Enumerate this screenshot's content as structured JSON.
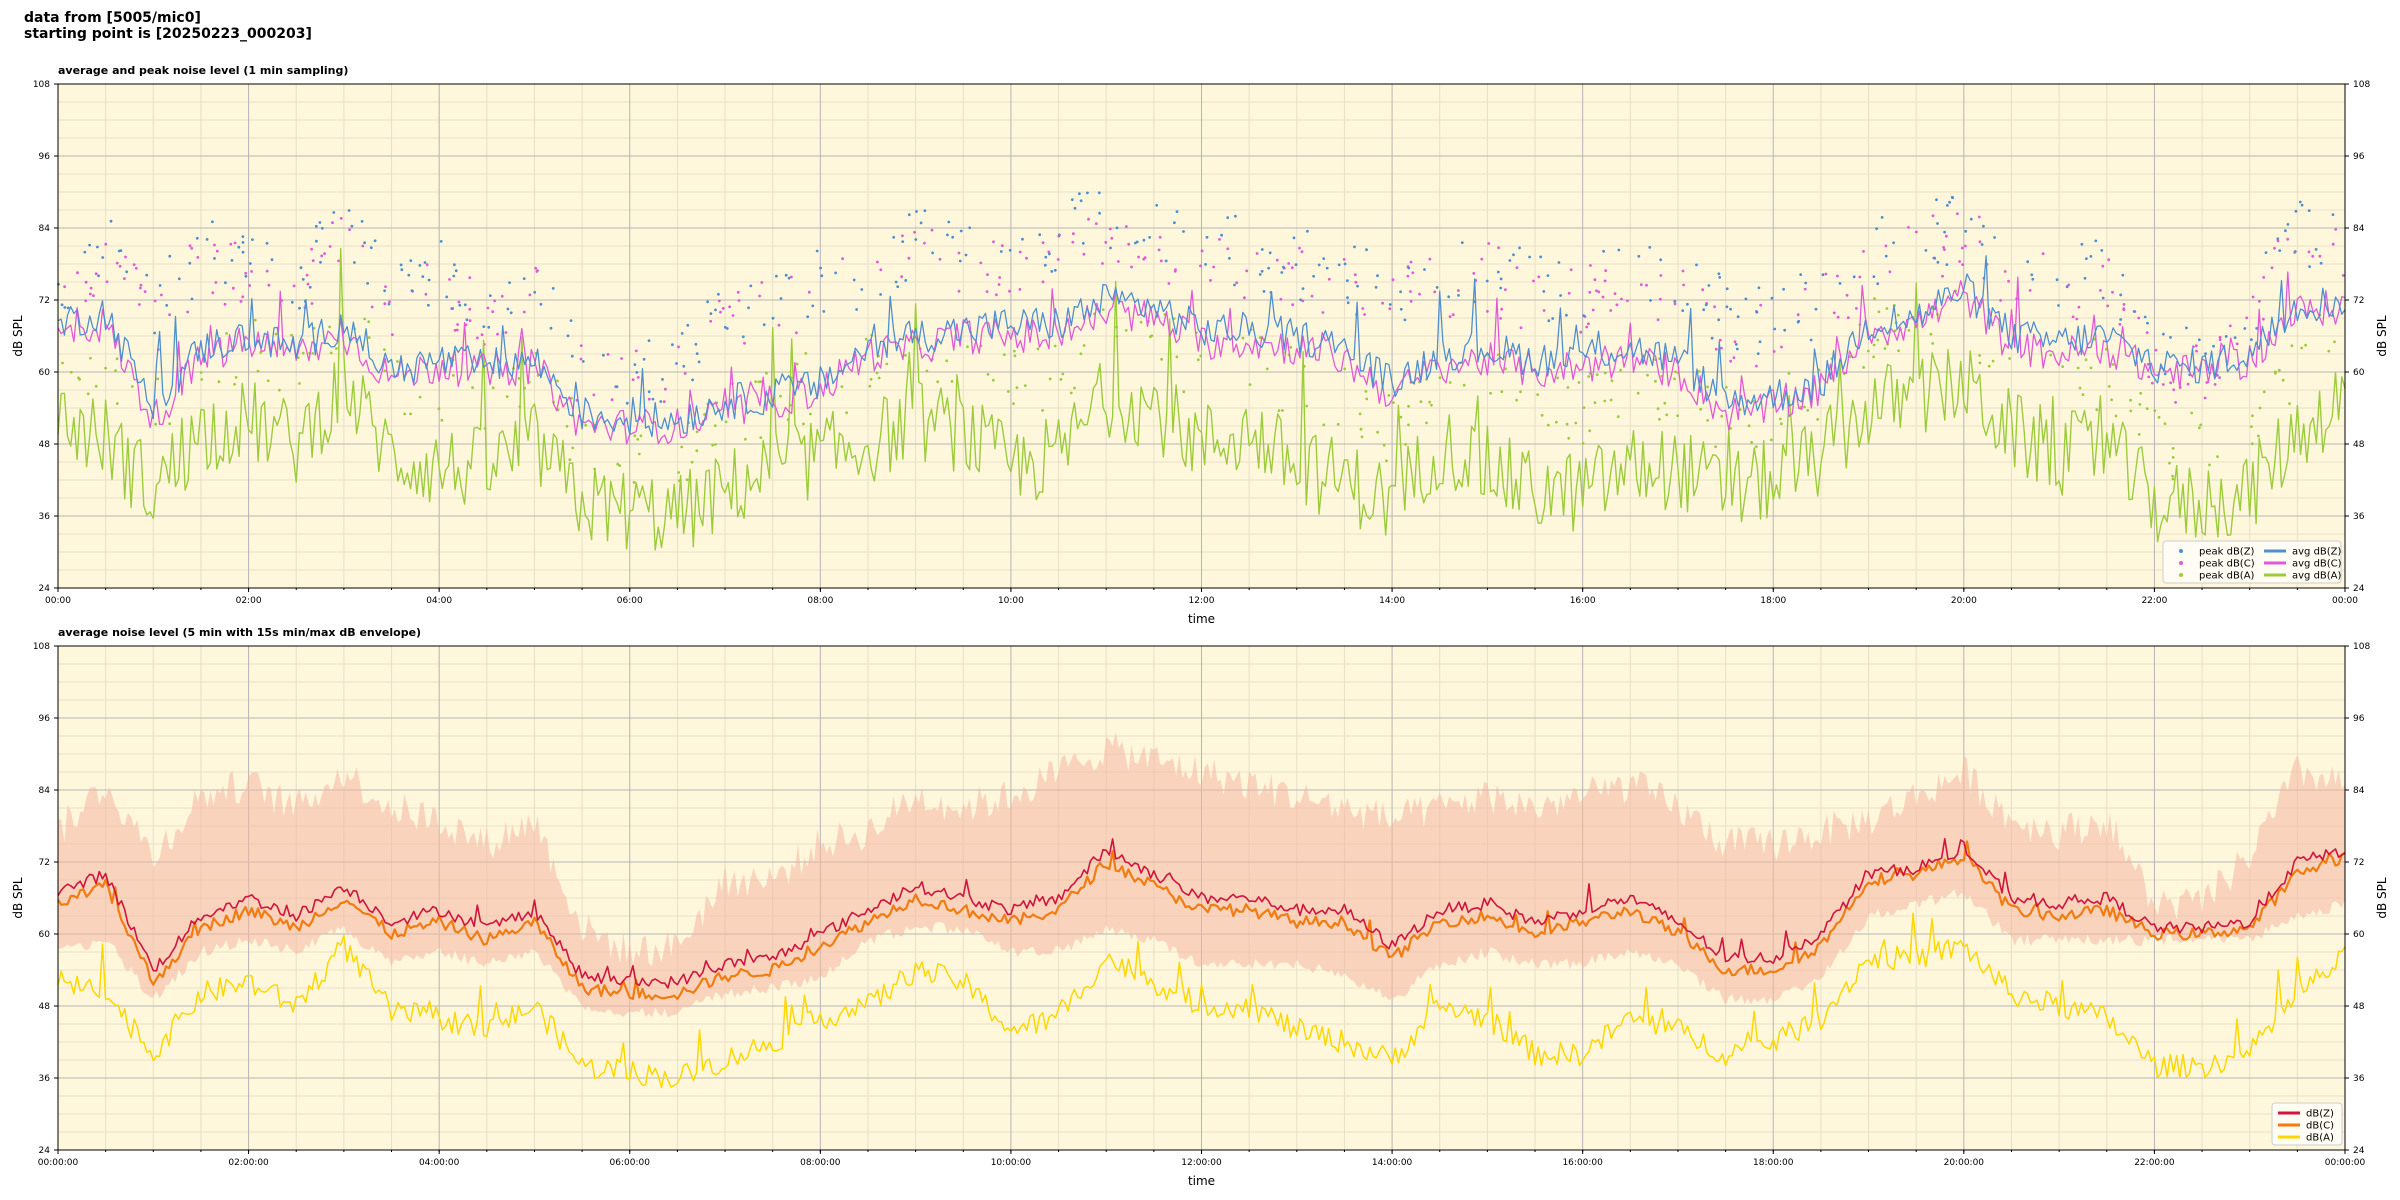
{
  "header": {
    "line1": "data from [5005/mic0]",
    "line2": "starting point is [20250223_000203]"
  },
  "colors": {
    "plot_bg": "#fff7dc",
    "grid_major": "#b5b5b5",
    "grid_minor": "#e7e0c8",
    "z": "#4f8fd0",
    "c": "#e259d8",
    "a": "#9ccc3c",
    "z5": "#d1143c",
    "c5": "#f07c12",
    "a5": "#ffd700",
    "envelope": "#f4b6a0"
  },
  "chart_data": [
    {
      "type": "line",
      "title": "average and peak noise level (1 min sampling)",
      "xlabel": "time",
      "ylabel": "dB SPL",
      "ylim": [
        24,
        108
      ],
      "yticks": [
        "24",
        "36",
        "48",
        "60",
        "72",
        "84",
        "96",
        "108"
      ],
      "xticks": [
        "00:00",
        "02:00",
        "04:00",
        "06:00",
        "08:00",
        "10:00",
        "12:00",
        "14:00",
        "16:00",
        "18:00",
        "20:00",
        "22:00",
        "00:00"
      ],
      "x_unit": "hours",
      "x": [
        0,
        0.5,
        1.0,
        1.5,
        2.0,
        2.5,
        3.0,
        3.5,
        4.0,
        4.5,
        5.0,
        5.5,
        6.0,
        6.5,
        7.0,
        7.5,
        8.0,
        8.5,
        9.0,
        9.5,
        10.0,
        10.5,
        11.0,
        11.5,
        12.0,
        12.5,
        13.0,
        13.5,
        14.0,
        14.5,
        15.0,
        15.5,
        16.0,
        16.5,
        17.0,
        17.5,
        18.0,
        18.5,
        19.0,
        19.5,
        20.0,
        20.5,
        21.0,
        21.5,
        22.0,
        22.5,
        23.0,
        23.5,
        24.0
      ],
      "grid": true,
      "legend_position": "bottom-right",
      "legend": [
        "peak dB(Z)",
        "peak dB(C)",
        "peak dB(A)",
        "avg dB(Z)",
        "avg dB(C)",
        "avg dB(A)"
      ],
      "series": [
        {
          "name": "avg dB(Z)",
          "values": [
            68,
            70,
            54,
            64,
            66,
            64,
            68,
            60,
            62,
            61,
            62,
            53,
            52,
            52,
            55,
            56,
            58,
            64,
            66,
            67,
            68,
            68,
            72,
            71,
            67,
            67,
            66,
            64,
            58,
            63,
            64,
            62,
            63,
            64,
            62,
            55,
            56,
            58,
            68,
            69,
            74,
            66,
            65,
            66,
            61,
            61,
            63,
            71,
            72
          ]
        },
        {
          "name": "avg dB(C)",
          "values": [
            66,
            68,
            52,
            62,
            65,
            63,
            66,
            59,
            61,
            60,
            61,
            51,
            51,
            51,
            53,
            55,
            57,
            63,
            64,
            66,
            66,
            66,
            70,
            69,
            65,
            65,
            64,
            62,
            56,
            61,
            62,
            60,
            61,
            62,
            60,
            53,
            54,
            57,
            67,
            68,
            73,
            64,
            63,
            64,
            60,
            60,
            62,
            70,
            71
          ]
        },
        {
          "name": "avg dB(A)",
          "values": [
            52,
            49,
            40,
            50,
            52,
            48,
            58,
            46,
            44,
            44,
            48,
            38,
            37,
            36,
            40,
            44,
            46,
            48,
            52,
            50,
            44,
            46,
            56,
            54,
            48,
            50,
            44,
            42,
            38,
            48,
            44,
            40,
            40,
            44,
            44,
            40,
            42,
            46,
            54,
            56,
            58,
            50,
            46,
            48,
            38,
            38,
            40,
            50,
            56
          ]
        },
        {
          "name": "peak dB(Z)",
          "values": [
            75,
            82,
            70,
            80,
            78,
            76,
            85,
            74,
            76,
            72,
            74,
            62,
            60,
            60,
            70,
            72,
            76,
            76,
            82,
            80,
            78,
            82,
            86,
            84,
            80,
            80,
            78,
            76,
            74,
            76,
            78,
            74,
            74,
            80,
            74,
            70,
            68,
            72,
            80,
            82,
            84,
            78,
            76,
            78,
            62,
            62,
            70,
            84,
            82
          ]
        },
        {
          "name": "peak dB(C)",
          "values": [
            73,
            80,
            68,
            78,
            76,
            74,
            83,
            72,
            74,
            70,
            72,
            60,
            58,
            58,
            68,
            70,
            74,
            74,
            80,
            78,
            76,
            80,
            84,
            82,
            78,
            78,
            76,
            74,
            72,
            74,
            76,
            72,
            72,
            78,
            72,
            68,
            66,
            70,
            78,
            80,
            82,
            76,
            74,
            76,
            60,
            60,
            68,
            82,
            80
          ]
        },
        {
          "name": "peak dB(A)",
          "values": [
            62,
            60,
            52,
            62,
            64,
            60,
            70,
            58,
            58,
            56,
            60,
            48,
            46,
            46,
            52,
            56,
            58,
            60,
            64,
            62,
            58,
            60,
            68,
            66,
            60,
            62,
            58,
            56,
            50,
            60,
            58,
            54,
            54,
            58,
            56,
            52,
            54,
            58,
            66,
            68,
            70,
            62,
            58,
            60,
            48,
            48,
            52,
            62,
            66
          ]
        }
      ]
    },
    {
      "type": "area",
      "title": "average noise level (5 min with 15s min/max dB envelope)",
      "xlabel": "time",
      "ylabel": "dB SPL",
      "ylim": [
        24,
        108
      ],
      "yticks": [
        "24",
        "36",
        "48",
        "60",
        "72",
        "84",
        "96",
        "108"
      ],
      "xticks": [
        "00:00:00",
        "02:00:00",
        "04:00:00",
        "06:00:00",
        "08:00:00",
        "10:00:00",
        "12:00:00",
        "14:00:00",
        "16:00:00",
        "18:00:00",
        "20:00:00",
        "22:00:00",
        "00:00:00"
      ],
      "x_unit": "hours",
      "x": [
        0,
        0.5,
        1.0,
        1.5,
        2.0,
        2.5,
        3.0,
        3.5,
        4.0,
        4.5,
        5.0,
        5.5,
        6.0,
        6.5,
        7.0,
        7.5,
        8.0,
        8.5,
        9.0,
        9.5,
        10.0,
        10.5,
        11.0,
        11.5,
        12.0,
        12.5,
        13.0,
        13.5,
        14.0,
        14.5,
        15.0,
        15.5,
        16.0,
        16.5,
        17.0,
        17.5,
        18.0,
        18.5,
        19.0,
        19.5,
        20.0,
        20.5,
        21.0,
        21.5,
        22.0,
        22.5,
        23.0,
        23.5,
        24.0
      ],
      "grid": true,
      "legend_position": "bottom-right",
      "legend": [
        "dB(Z)",
        "dB(C)",
        "dB(A)"
      ],
      "envelope": {
        "min": [
          58,
          60,
          50,
          58,
          60,
          58,
          62,
          56,
          58,
          56,
          58,
          49,
          48,
          48,
          51,
          52,
          54,
          60,
          62,
          62,
          58,
          58,
          62,
          60,
          56,
          56,
          56,
          54,
          50,
          56,
          58,
          56,
          56,
          58,
          56,
          50,
          50,
          54,
          64,
          66,
          68,
          60,
          60,
          60,
          60,
          60,
          60,
          64,
          66
        ],
        "max": [
          74,
          82,
          70,
          80,
          82,
          78,
          84,
          78,
          76,
          72,
          76,
          58,
          54,
          55,
          66,
          66,
          72,
          74,
          80,
          78,
          80,
          84,
          88,
          86,
          84,
          82,
          80,
          78,
          76,
          78,
          80,
          78,
          80,
          82,
          78,
          72,
          72,
          74,
          76,
          80,
          84,
          76,
          74,
          76,
          62,
          62,
          70,
          84,
          82
        ]
      },
      "series": [
        {
          "name": "dB(Z)",
          "values": [
            67,
            70,
            54,
            63,
            66,
            63,
            68,
            62,
            64,
            61,
            64,
            53,
            52,
            52,
            55,
            56,
            60,
            64,
            68,
            66,
            64,
            66,
            74,
            70,
            66,
            66,
            64,
            64,
            58,
            64,
            65,
            62,
            64,
            66,
            62,
            56,
            56,
            60,
            70,
            71,
            74,
            66,
            65,
            66,
            61,
            61,
            62,
            72,
            74
          ]
        },
        {
          "name": "dB(C)",
          "values": [
            65,
            68,
            52,
            61,
            64,
            61,
            66,
            60,
            62,
            59,
            62,
            51,
            50,
            50,
            53,
            54,
            58,
            62,
            66,
            64,
            62,
            64,
            72,
            68,
            64,
            64,
            62,
            62,
            56,
            62,
            63,
            60,
            62,
            64,
            60,
            54,
            54,
            58,
            69,
            70,
            73,
            64,
            63,
            64,
            60,
            60,
            61,
            70,
            73
          ]
        },
        {
          "name": "dB(A)",
          "values": [
            52,
            50,
            40,
            50,
            52,
            48,
            58,
            47,
            46,
            44,
            48,
            38,
            37,
            36,
            39,
            42,
            46,
            48,
            54,
            52,
            44,
            46,
            56,
            52,
            48,
            48,
            44,
            42,
            39,
            48,
            46,
            40,
            40,
            46,
            44,
            40,
            42,
            46,
            56,
            56,
            58,
            50,
            48,
            46,
            38,
            38,
            40,
            50,
            56
          ]
        }
      ]
    }
  ]
}
